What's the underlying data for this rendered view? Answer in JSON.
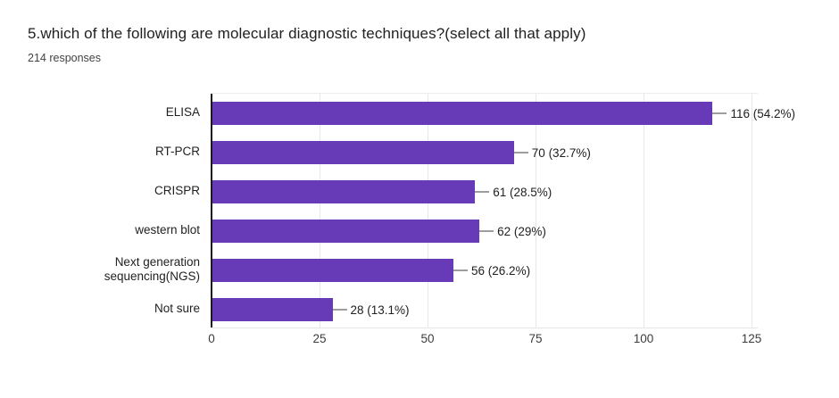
{
  "header": {
    "title": "5.which of the following are molecular diagnostic techniques?(select all that apply)",
    "subtitle": "214 responses"
  },
  "chart_data": {
    "type": "bar",
    "orientation": "horizontal",
    "title": "5.which of the following are molecular diagnostic techniques?(select all that apply)",
    "subtitle": "214 responses",
    "categories": [
      "ELISA",
      "RT-PCR",
      "CRISPR",
      "western blot",
      "Next generation sequencing(NGS)",
      "Not sure"
    ],
    "values": [
      116,
      70,
      61,
      62,
      56,
      28
    ],
    "percentages": [
      54.2,
      32.7,
      28.5,
      29,
      26.2,
      13.1
    ],
    "value_labels": [
      "116 (54.2%)",
      "70 (32.7%)",
      "61 (28.5%)",
      "62 (29%)",
      "56 (26.2%)",
      "28 (13.1%)"
    ],
    "total_responses": 214,
    "x_ticks": [
      0,
      25,
      50,
      75,
      100,
      125
    ],
    "xlim": [
      0,
      125
    ],
    "grid": "vertical",
    "legend": "none",
    "colors": {
      "bar": "#673ab7",
      "gridline": "#e8e8e8",
      "baseline": "#1a1a1a",
      "leader_line": "#9e9e9e",
      "text": "#212121"
    }
  }
}
